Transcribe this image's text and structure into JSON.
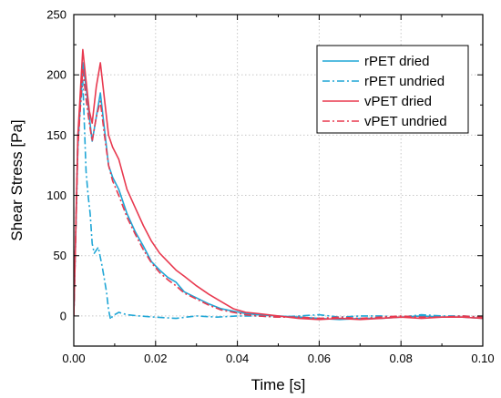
{
  "chart_data": {
    "type": "line",
    "title": "",
    "xlabel": "Time [s]",
    "ylabel": "Shear Stress [Pa]",
    "xlim": [
      0.0,
      0.1
    ],
    "ylim": [
      -25,
      250
    ],
    "xticks": [
      "0.00",
      "0.02",
      "0.04",
      "0.06",
      "0.08",
      "0.10"
    ],
    "xtick_values": [
      0.0,
      0.02,
      0.04,
      0.06,
      0.08,
      0.1
    ],
    "yticks": [
      "0",
      "50",
      "100",
      "150",
      "200",
      "250"
    ],
    "ytick_values": [
      0,
      50,
      100,
      150,
      200,
      250
    ],
    "grid": true,
    "legend_position": "top-right",
    "series": [
      {
        "name": "rPET dried",
        "color": "#1fa6d6",
        "dash": "solid",
        "x": [
          0,
          0.001,
          0.0022,
          0.003,
          0.0038,
          0.0045,
          0.0055,
          0.0065,
          0.0075,
          0.0085,
          0.0095,
          0.011,
          0.013,
          0.015,
          0.017,
          0.019,
          0.021,
          0.023,
          0.025,
          0.027,
          0.03,
          0.033,
          0.036,
          0.039,
          0.042,
          0.045,
          0.05,
          0.055,
          0.06,
          0.065,
          0.07,
          0.075,
          0.08,
          0.085,
          0.09,
          0.095,
          0.1
        ],
        "y": [
          0,
          140,
          210,
          190,
          165,
          145,
          165,
          185,
          155,
          125,
          115,
          105,
          85,
          70,
          58,
          45,
          38,
          32,
          28,
          20,
          15,
          10,
          6,
          4,
          2,
          1,
          0,
          -1,
          -2,
          -3,
          -2,
          -2,
          -1,
          0,
          -1,
          -1,
          -2
        ]
      },
      {
        "name": "rPET undried",
        "color": "#1fa6d6",
        "dash": "dashdot",
        "x": [
          0,
          0.001,
          0.0022,
          0.003,
          0.0035,
          0.004,
          0.0045,
          0.005,
          0.006,
          0.007,
          0.008,
          0.0085,
          0.009,
          0.0095,
          0.011,
          0.013,
          0.016,
          0.02,
          0.025,
          0.03,
          0.035,
          0.04,
          0.045,
          0.05,
          0.055,
          0.06,
          0.065,
          0.07,
          0.075,
          0.08,
          0.085,
          0.09,
          0.095,
          0.1
        ],
        "y": [
          0,
          150,
          195,
          120,
          100,
          85,
          60,
          52,
          57,
          40,
          20,
          5,
          -3,
          0,
          3,
          1,
          0,
          -1,
          -2,
          0,
          -1,
          0,
          0,
          -1,
          0,
          1,
          -1,
          0,
          0,
          -1,
          1,
          0,
          0,
          -1
        ]
      },
      {
        "name": "vPET dried",
        "color": "#e8394f",
        "dash": "solid",
        "x": [
          0,
          0.001,
          0.0022,
          0.003,
          0.0038,
          0.0045,
          0.0055,
          0.0065,
          0.0075,
          0.0085,
          0.0095,
          0.011,
          0.013,
          0.015,
          0.017,
          0.019,
          0.021,
          0.023,
          0.025,
          0.027,
          0.03,
          0.033,
          0.036,
          0.039,
          0.042,
          0.045,
          0.05,
          0.055,
          0.06,
          0.065,
          0.07,
          0.075,
          0.08,
          0.085,
          0.09,
          0.095,
          0.1
        ],
        "y": [
          0,
          150,
          221,
          195,
          170,
          160,
          190,
          210,
          180,
          150,
          140,
          130,
          105,
          90,
          75,
          62,
          52,
          45,
          38,
          33,
          25,
          18,
          12,
          6,
          3,
          2,
          0,
          -2,
          -3,
          -2,
          -3,
          -2,
          -1,
          -2,
          -1,
          -1,
          -2
        ]
      },
      {
        "name": "vPET undried",
        "color": "#e8394f",
        "dash": "dashdot",
        "x": [
          0,
          0.001,
          0.0022,
          0.003,
          0.0038,
          0.0045,
          0.0055,
          0.0065,
          0.0075,
          0.0085,
          0.0095,
          0.011,
          0.013,
          0.015,
          0.017,
          0.019,
          0.021,
          0.023,
          0.025,
          0.027,
          0.03,
          0.033,
          0.036,
          0.039,
          0.042,
          0.045,
          0.05,
          0.055,
          0.06,
          0.065,
          0.07,
          0.075,
          0.08,
          0.085,
          0.09,
          0.095,
          0.1
        ],
        "y": [
          0,
          140,
          205,
          180,
          160,
          145,
          165,
          178,
          150,
          125,
          112,
          100,
          82,
          68,
          55,
          44,
          36,
          30,
          25,
          19,
          14,
          9,
          5,
          3,
          1,
          0,
          -1,
          -1,
          -2,
          -1,
          -2,
          -1,
          0,
          -1,
          -1,
          0,
          -1
        ]
      }
    ]
  }
}
